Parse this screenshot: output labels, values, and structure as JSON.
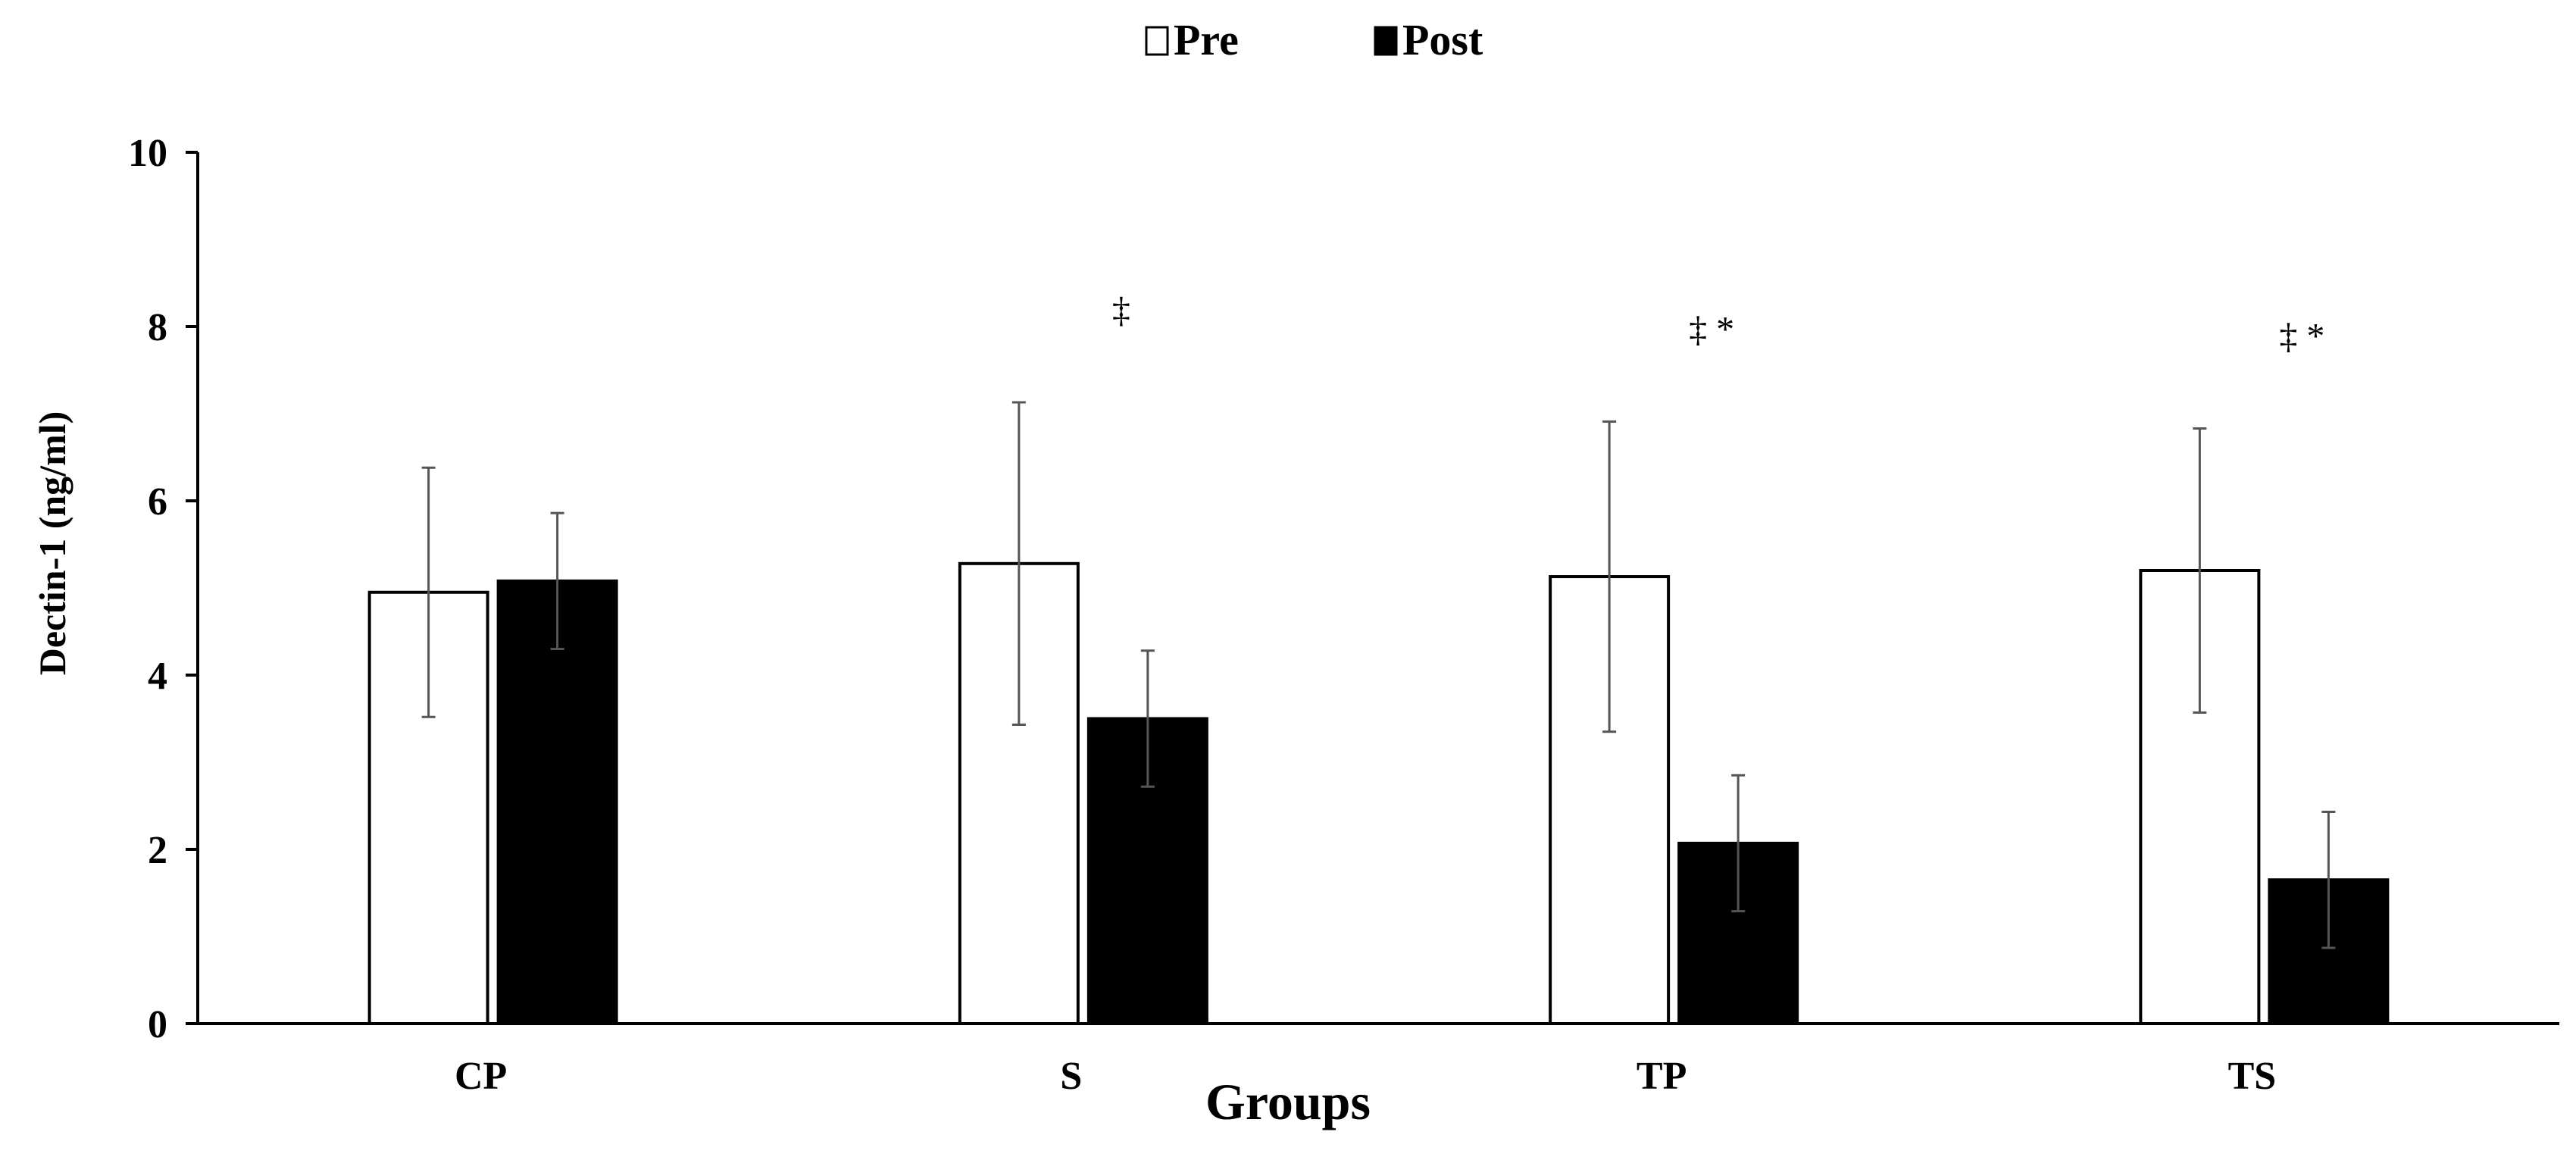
{
  "chart_data": {
    "type": "bar",
    "title": "",
    "xlabel": "Groups",
    "ylabel": "Dectin-1 (ng/ml)",
    "ylim": [
      0,
      10
    ],
    "yticks": [
      "0",
      "2",
      "4",
      "6",
      "8",
      "10"
    ],
    "grid": false,
    "legend_position": "top-center",
    "categories": [
      "CP",
      "S",
      "TP",
      "TS"
    ],
    "series": [
      {
        "name": "Pre",
        "color": "#ffffff",
        "values": [
          4.95,
          5.28,
          5.13,
          5.2
        ],
        "errors": [
          1.43,
          1.85,
          1.78,
          1.63
        ]
      },
      {
        "name": "Post",
        "color": "#000000",
        "values": [
          5.08,
          3.5,
          2.07,
          1.65
        ],
        "errors": [
          0.78,
          0.78,
          0.78,
          0.78
        ]
      }
    ],
    "annotations": [
      "",
      "‡",
      "‡ *",
      "‡ *"
    ]
  },
  "legend": {
    "pre_label": "Pre",
    "post_label": "Post"
  }
}
